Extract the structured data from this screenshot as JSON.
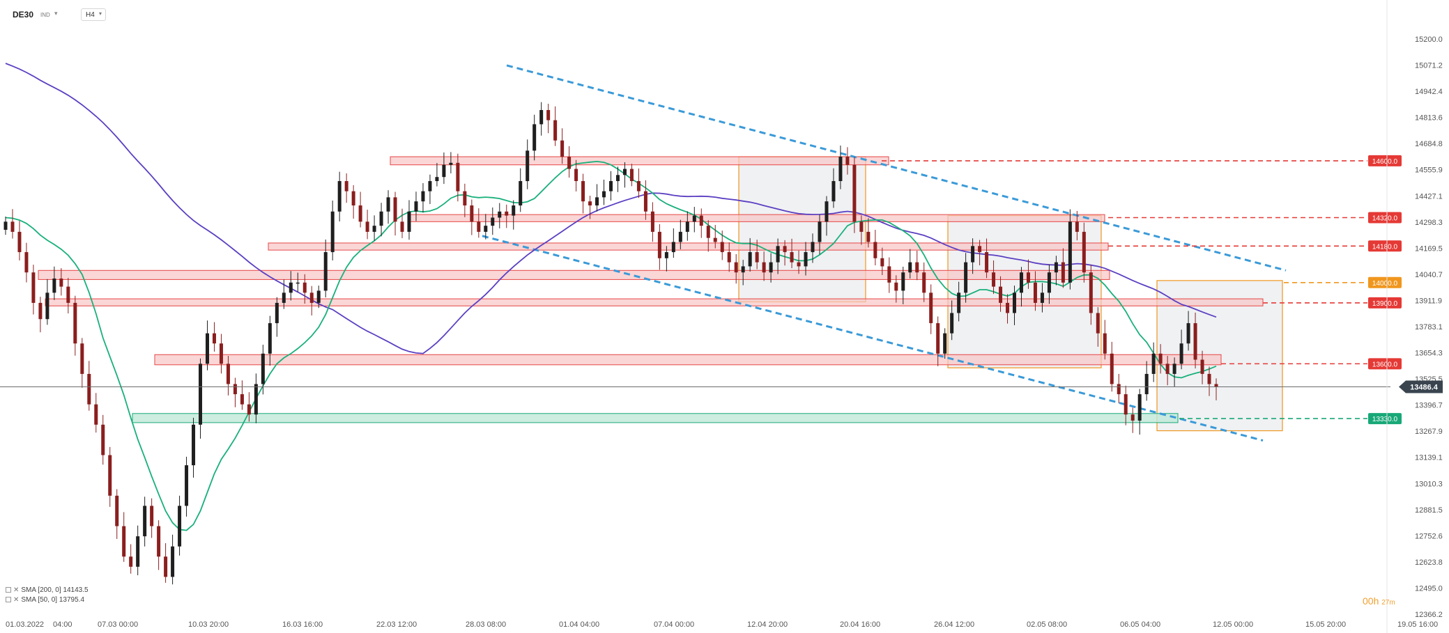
{
  "header": {
    "symbol": "DE30",
    "symbol_type": "IND",
    "timeframe": "H4"
  },
  "indicators": [
    {
      "label": "SMA [200, 0]",
      "value": "14143.5",
      "color": "#5b3fc2"
    },
    {
      "label": "SMA [50, 0]",
      "value": "13795.4",
      "color": "#18b07a"
    }
  ],
  "countdown": {
    "hours": "00h",
    "minutes": "27m"
  },
  "chart_data": {
    "type": "candlestick",
    "price_axis_ticks": [
      "15200.0",
      "15071.2",
      "14942.4",
      "14813.6",
      "14684.8",
      "14555.9",
      "14427.1",
      "14298.3",
      "14169.5",
      "14040.7",
      "13911.9",
      "13783.1",
      "13654.3",
      "13525.5",
      "13396.7",
      "13267.9",
      "13139.1",
      "13010.3",
      "12881.5",
      "12752.6",
      "12623.8",
      "12495.0",
      "12366.2"
    ],
    "time_axis_labels": [
      "01.03.2022",
      "04:00",
      "07.03 00:00",
      "10.03 20:00",
      "16.03 16:00",
      "22.03 12:00",
      "28.03 08:00",
      "01.04 04:00",
      "07.04 00:00",
      "12.04 20:00",
      "20.04 16:00",
      "26.04 12:00",
      "02.05 08:00",
      "06.05 04:00",
      "12.05 00:00",
      "15.05 20:00",
      "19.05 16:00"
    ],
    "current_price": "13486.4",
    "level_tags": [
      {
        "value": "14600.0",
        "color": "#e53935",
        "style": "dashed"
      },
      {
        "value": "14320.0",
        "color": "#e53935",
        "style": "dashed"
      },
      {
        "value": "14180.0",
        "color": "#e53935",
        "style": "dashed"
      },
      {
        "value": "14000.0",
        "color": "#f0961e",
        "style": "dashed"
      },
      {
        "value": "13900.0",
        "color": "#e53935",
        "style": "dashed"
      },
      {
        "value": "13600.0",
        "color": "#e53935",
        "style": "dashed"
      },
      {
        "value": "13330.0",
        "color": "#18a878",
        "style": "dashed"
      }
    ],
    "close_prices": [
      14300,
      14250,
      14150,
      14050,
      13900,
      13820,
      13950,
      14020,
      13980,
      13900,
      13700,
      13550,
      13400,
      13300,
      13150,
      12950,
      12800,
      12650,
      12600,
      12750,
      12900,
      12800,
      12650,
      12550,
      12700,
      12900,
      13100,
      13300,
      13600,
      13750,
      13700,
      13600,
      13500,
      13450,
      13400,
      13350,
      13500,
      13650,
      13800,
      13900,
      13950,
      14000,
      14000,
      13950,
      13900,
      13960,
      14150,
      14350,
      14500,
      14450,
      14380,
      14300,
      14250,
      14280,
      14350,
      14420,
      14300,
      14250,
      14350,
      14400,
      14450,
      14500,
      14520,
      14580,
      14590,
      14450,
      14380,
      14300,
      14250,
      14280,
      14320,
      14350,
      14330,
      14380,
      14500,
      14650,
      14780,
      14850,
      14800,
      14700,
      14620,
      14560,
      14500,
      14400,
      14380,
      14420,
      14450,
      14500,
      14530,
      14560,
      14500,
      14450,
      14350,
      14250,
      14120,
      14150,
      14200,
      14250,
      14300,
      14330,
      14280,
      14220,
      14200,
      14150,
      14100,
      14050,
      14080,
      14150,
      14100,
      14050,
      14100,
      14180,
      14150,
      14100,
      14080,
      14150,
      14200,
      14300,
      14400,
      14500,
      14620,
      14580,
      14300,
      14250,
      14200,
      14120,
      14080,
      14000,
      13960,
      14050,
      14100,
      14050,
      13950,
      13800,
      13650,
      13750,
      13850,
      13950,
      14100,
      14180,
      14150,
      14050,
      13980,
      13900,
      13850,
      13950,
      14050,
      14000,
      13900,
      13950,
      14050,
      14100,
      14000,
      14300,
      14250,
      14050,
      13850,
      13750,
      13650,
      13500,
      13450,
      13350,
      13320,
      13450,
      13550,
      13650,
      13600,
      13550,
      13600,
      13700,
      13800,
      13620,
      13550,
      13500,
      13487
    ]
  }
}
